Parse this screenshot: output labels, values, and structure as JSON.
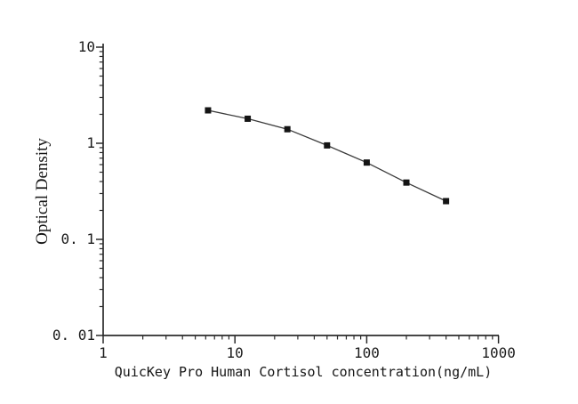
{
  "chart_data": {
    "type": "scatter-line",
    "title": "",
    "xlabel": "QuicKey Pro Human Cortisol concentration(ng/mL)",
    "ylabel": "Optical Density",
    "x_scale": "log",
    "y_scale": "log",
    "xlim": [
      1,
      1000
    ],
    "ylim": [
      0.01,
      10
    ],
    "x": [
      6.25,
      12.5,
      25,
      50,
      100,
      200,
      400
    ],
    "y": [
      2.2,
      1.8,
      1.4,
      0.95,
      0.63,
      0.39,
      0.25
    ],
    "x_major_ticks": [
      1,
      10,
      100,
      1000
    ],
    "x_tick_labels": [
      "1",
      "10",
      "100",
      "1000"
    ],
    "y_major_ticks": [
      10,
      1,
      0.1,
      0.01
    ],
    "y_tick_labels": [
      "10",
      "1",
      "0. 1",
      "0. 01"
    ],
    "grid": false,
    "legend": "none",
    "marker": "filled-square",
    "line_style": "solid",
    "line_color": "#3a3a3a",
    "marker_color": "#141414",
    "axis_color": "#2b2b2b",
    "text_color": "#1c1c1c",
    "background_color": "#ffffff"
  }
}
